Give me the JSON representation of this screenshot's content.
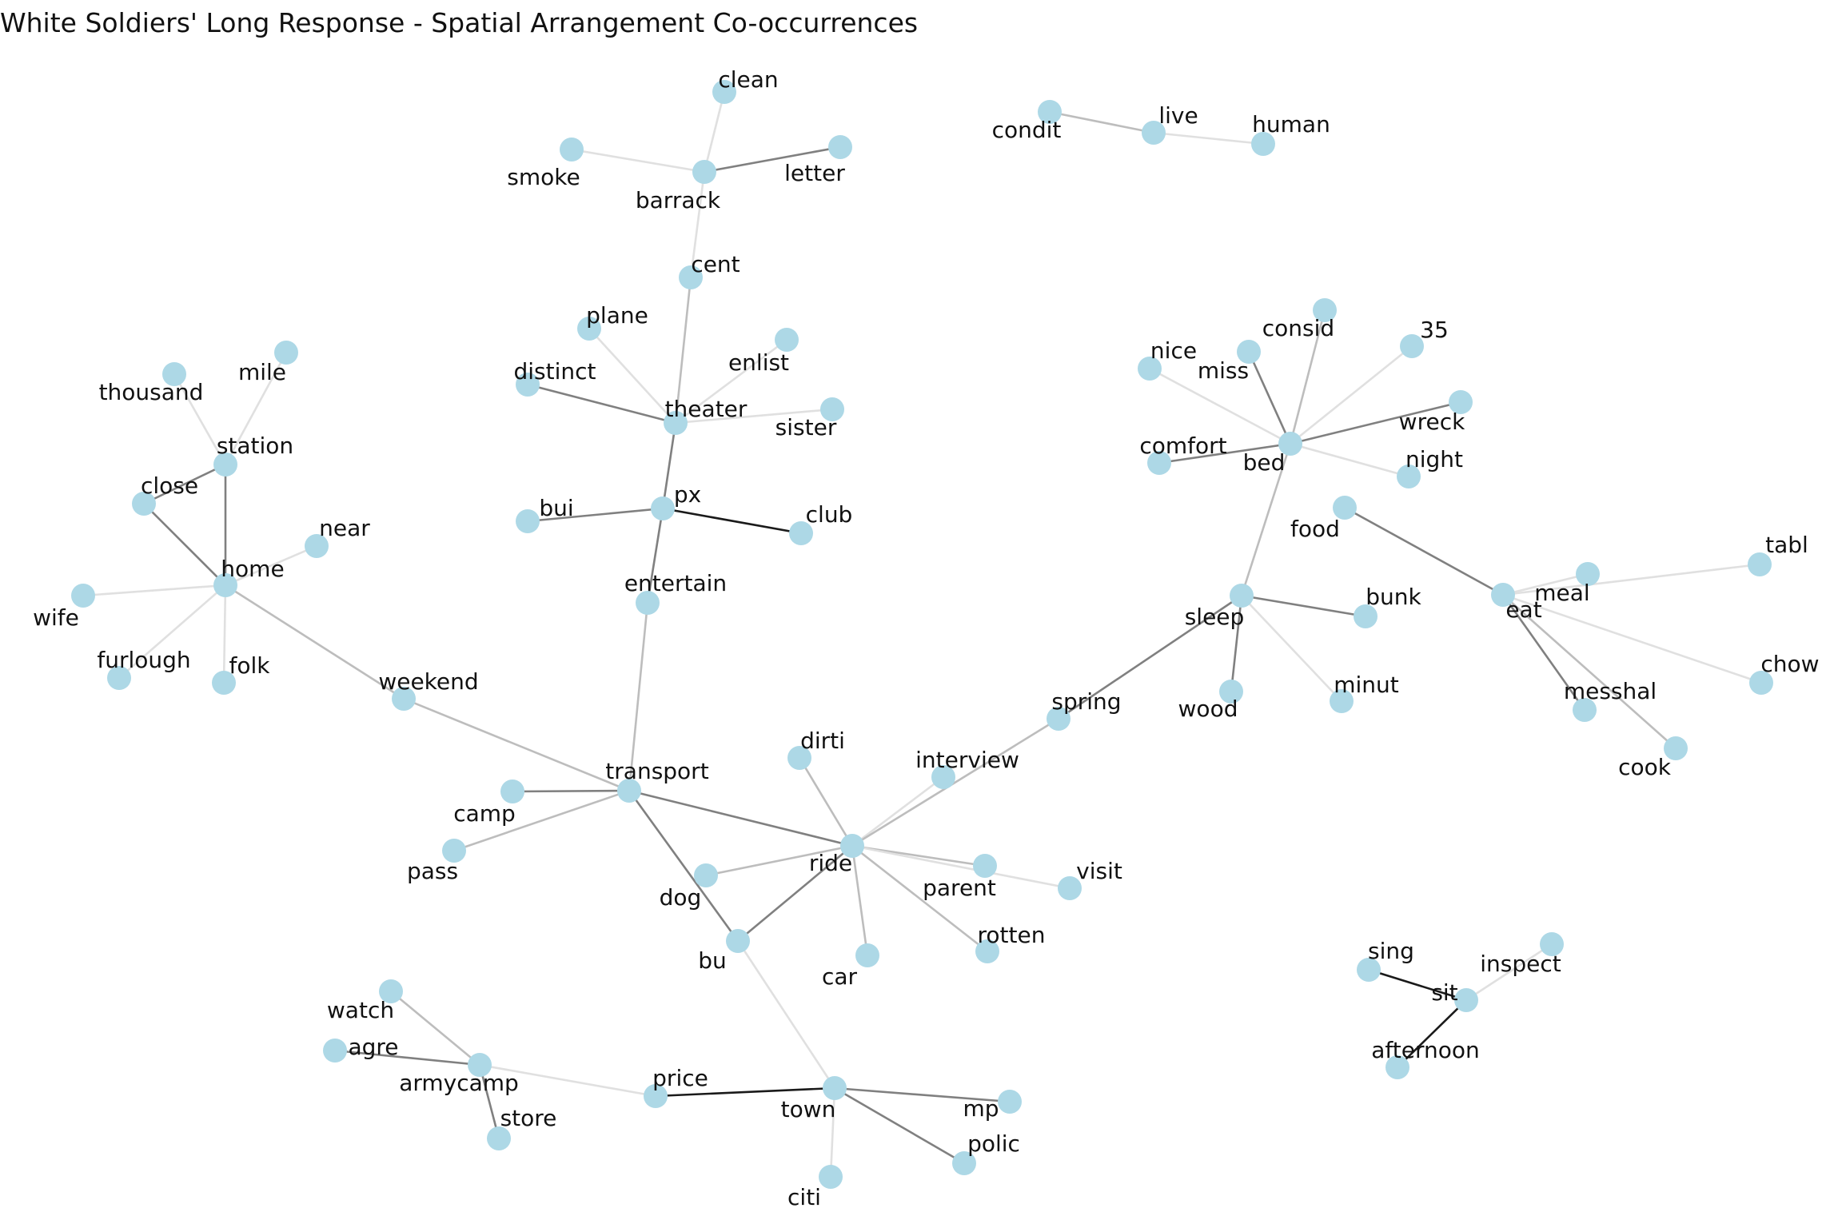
{
  "title": "White Soldiers' Long Response - Spatial Arrangement Co-occurrences",
  "colors": {
    "node": "#add8e6",
    "edge_light": "#e0e0e0",
    "edge_mid": "#bdbdbd",
    "edge_dark": "#808080",
    "edge_darkest": "#1a1a1a",
    "text": "#111111"
  },
  "nodes": [
    {
      "id": "clean",
      "label": "clean"
    },
    {
      "id": "smoke",
      "label": "smoke"
    },
    {
      "id": "barrack",
      "label": "barrack"
    },
    {
      "id": "letter",
      "label": "letter"
    },
    {
      "id": "cent",
      "label": "cent"
    },
    {
      "id": "plane",
      "label": "plane"
    },
    {
      "id": "enlist",
      "label": "enlist"
    },
    {
      "id": "distinct",
      "label": "distinct"
    },
    {
      "id": "theater",
      "label": "theater"
    },
    {
      "id": "sister",
      "label": "sister"
    },
    {
      "id": "px",
      "label": "px"
    },
    {
      "id": "bui",
      "label": "bui"
    },
    {
      "id": "club",
      "label": "club"
    },
    {
      "id": "entertain",
      "label": "entertain"
    },
    {
      "id": "transport",
      "label": "transport"
    },
    {
      "id": "camp",
      "label": "camp"
    },
    {
      "id": "pass",
      "label": "pass"
    },
    {
      "id": "weekend",
      "label": "weekend"
    },
    {
      "id": "home",
      "label": "home"
    },
    {
      "id": "station",
      "label": "station"
    },
    {
      "id": "thousand",
      "label": "thousand"
    },
    {
      "id": "mile",
      "label": "mile"
    },
    {
      "id": "close",
      "label": "close"
    },
    {
      "id": "near",
      "label": "near"
    },
    {
      "id": "wife",
      "label": "wife"
    },
    {
      "id": "furlough",
      "label": "furlough"
    },
    {
      "id": "folk",
      "label": "folk"
    },
    {
      "id": "ride",
      "label": "ride"
    },
    {
      "id": "dirti",
      "label": "dirti"
    },
    {
      "id": "interview",
      "label": "interview"
    },
    {
      "id": "dog",
      "label": "dog"
    },
    {
      "id": "parent",
      "label": "parent"
    },
    {
      "id": "visit",
      "label": "visit"
    },
    {
      "id": "car",
      "label": "car"
    },
    {
      "id": "rotten",
      "label": "rotten"
    },
    {
      "id": "bu",
      "label": "bu"
    },
    {
      "id": "spring",
      "label": "spring"
    },
    {
      "id": "sleep",
      "label": "sleep"
    },
    {
      "id": "bunk",
      "label": "bunk"
    },
    {
      "id": "wood",
      "label": "wood"
    },
    {
      "id": "minut",
      "label": "minut"
    },
    {
      "id": "bed",
      "label": "bed"
    },
    {
      "id": "consid",
      "label": "consid"
    },
    {
      "id": "miss",
      "label": "miss"
    },
    {
      "id": "nice",
      "label": "nice"
    },
    {
      "id": "35",
      "label": "35"
    },
    {
      "id": "wreck",
      "label": "wreck"
    },
    {
      "id": "comfort",
      "label": "comfort"
    },
    {
      "id": "night",
      "label": "night"
    },
    {
      "id": "condit",
      "label": "condit"
    },
    {
      "id": "live",
      "label": "live"
    },
    {
      "id": "human",
      "label": "human"
    },
    {
      "id": "food",
      "label": "food"
    },
    {
      "id": "tabl",
      "label": "tabl"
    },
    {
      "id": "meal",
      "label": "meal"
    },
    {
      "id": "eat",
      "label": "eat"
    },
    {
      "id": "messhal",
      "label": "messhal"
    },
    {
      "id": "chow",
      "label": "chow"
    },
    {
      "id": "cook",
      "label": "cook"
    },
    {
      "id": "town",
      "label": "town"
    },
    {
      "id": "price",
      "label": "price"
    },
    {
      "id": "mp",
      "label": "mp"
    },
    {
      "id": "polic",
      "label": "polic"
    },
    {
      "id": "citi",
      "label": "citi"
    },
    {
      "id": "armycamp",
      "label": "armycamp"
    },
    {
      "id": "watch",
      "label": "watch"
    },
    {
      "id": "agre",
      "label": "agre"
    },
    {
      "id": "store",
      "label": "store"
    },
    {
      "id": "sit",
      "label": "sit"
    },
    {
      "id": "sing",
      "label": "sing"
    },
    {
      "id": "inspect",
      "label": "inspect"
    },
    {
      "id": "afternoon",
      "label": "afternoon"
    }
  ],
  "edges": [
    {
      "source": "barrack",
      "target": "clean",
      "shade": "light"
    },
    {
      "source": "barrack",
      "target": "smoke",
      "shade": "light"
    },
    {
      "source": "barrack",
      "target": "letter",
      "shade": "dark"
    },
    {
      "source": "barrack",
      "target": "cent",
      "shade": "light"
    },
    {
      "source": "cent",
      "target": "theater",
      "shade": "mid"
    },
    {
      "source": "theater",
      "target": "plane",
      "shade": "light"
    },
    {
      "source": "theater",
      "target": "enlist",
      "shade": "light"
    },
    {
      "source": "theater",
      "target": "distinct",
      "shade": "dark"
    },
    {
      "source": "theater",
      "target": "sister",
      "shade": "light"
    },
    {
      "source": "theater",
      "target": "px",
      "shade": "dark"
    },
    {
      "source": "px",
      "target": "bui",
      "shade": "dark"
    },
    {
      "source": "px",
      "target": "club",
      "shade": "darkest"
    },
    {
      "source": "px",
      "target": "entertain",
      "shade": "dark"
    },
    {
      "source": "entertain",
      "target": "transport",
      "shade": "mid"
    },
    {
      "source": "transport",
      "target": "camp",
      "shade": "dark"
    },
    {
      "source": "transport",
      "target": "pass",
      "shade": "mid"
    },
    {
      "source": "transport",
      "target": "weekend",
      "shade": "mid"
    },
    {
      "source": "transport",
      "target": "ride",
      "shade": "dark"
    },
    {
      "source": "transport",
      "target": "bu",
      "shade": "dark"
    },
    {
      "source": "weekend",
      "target": "home",
      "shade": "mid"
    },
    {
      "source": "home",
      "target": "station",
      "shade": "dark"
    },
    {
      "source": "home",
      "target": "close",
      "shade": "dark"
    },
    {
      "source": "home",
      "target": "near",
      "shade": "light"
    },
    {
      "source": "home",
      "target": "wife",
      "shade": "light"
    },
    {
      "source": "home",
      "target": "furlough",
      "shade": "light"
    },
    {
      "source": "home",
      "target": "folk",
      "shade": "light"
    },
    {
      "source": "station",
      "target": "thousand",
      "shade": "light"
    },
    {
      "source": "station",
      "target": "mile",
      "shade": "light"
    },
    {
      "source": "station",
      "target": "close",
      "shade": "dark"
    },
    {
      "source": "ride",
      "target": "dirti",
      "shade": "mid"
    },
    {
      "source": "ride",
      "target": "interview",
      "shade": "light"
    },
    {
      "source": "ride",
      "target": "spring",
      "shade": "mid"
    },
    {
      "source": "ride",
      "target": "dog",
      "shade": "mid"
    },
    {
      "source": "ride",
      "target": "parent",
      "shade": "mid"
    },
    {
      "source": "ride",
      "target": "visit",
      "shade": "light"
    },
    {
      "source": "ride",
      "target": "car",
      "shade": "mid"
    },
    {
      "source": "ride",
      "target": "rotten",
      "shade": "mid"
    },
    {
      "source": "ride",
      "target": "bu",
      "shade": "dark"
    },
    {
      "source": "bu",
      "target": "town",
      "shade": "light"
    },
    {
      "source": "spring",
      "target": "sleep",
      "shade": "dark"
    },
    {
      "source": "sleep",
      "target": "bunk",
      "shade": "dark"
    },
    {
      "source": "sleep",
      "target": "wood",
      "shade": "dark"
    },
    {
      "source": "sleep",
      "target": "minut",
      "shade": "light"
    },
    {
      "source": "sleep",
      "target": "bed",
      "shade": "mid"
    },
    {
      "source": "bed",
      "target": "consid",
      "shade": "mid"
    },
    {
      "source": "bed",
      "target": "miss",
      "shade": "dark"
    },
    {
      "source": "bed",
      "target": "nice",
      "shade": "light"
    },
    {
      "source": "bed",
      "target": "35",
      "shade": "light"
    },
    {
      "source": "bed",
      "target": "wreck",
      "shade": "dark"
    },
    {
      "source": "bed",
      "target": "comfort",
      "shade": "dark"
    },
    {
      "source": "bed",
      "target": "night",
      "shade": "light"
    },
    {
      "source": "live",
      "target": "condit",
      "shade": "mid"
    },
    {
      "source": "live",
      "target": "human",
      "shade": "light"
    },
    {
      "source": "eat",
      "target": "food",
      "shade": "dark"
    },
    {
      "source": "eat",
      "target": "tabl",
      "shade": "light"
    },
    {
      "source": "eat",
      "target": "meal",
      "shade": "light"
    },
    {
      "source": "eat",
      "target": "messhal",
      "shade": "dark"
    },
    {
      "source": "eat",
      "target": "chow",
      "shade": "light"
    },
    {
      "source": "eat",
      "target": "cook",
      "shade": "mid"
    },
    {
      "source": "town",
      "target": "price",
      "shade": "darkest"
    },
    {
      "source": "town",
      "target": "mp",
      "shade": "dark"
    },
    {
      "source": "town",
      "target": "polic",
      "shade": "dark"
    },
    {
      "source": "town",
      "target": "citi",
      "shade": "light"
    },
    {
      "source": "armycamp",
      "target": "price",
      "shade": "light"
    },
    {
      "source": "armycamp",
      "target": "watch",
      "shade": "mid"
    },
    {
      "source": "armycamp",
      "target": "agre",
      "shade": "dark"
    },
    {
      "source": "armycamp",
      "target": "store",
      "shade": "dark"
    },
    {
      "source": "sit",
      "target": "sing",
      "shade": "darkest"
    },
    {
      "source": "sit",
      "target": "inspect",
      "shade": "light"
    },
    {
      "source": "sit",
      "target": "afternoon",
      "shade": "darkest"
    }
  ]
}
